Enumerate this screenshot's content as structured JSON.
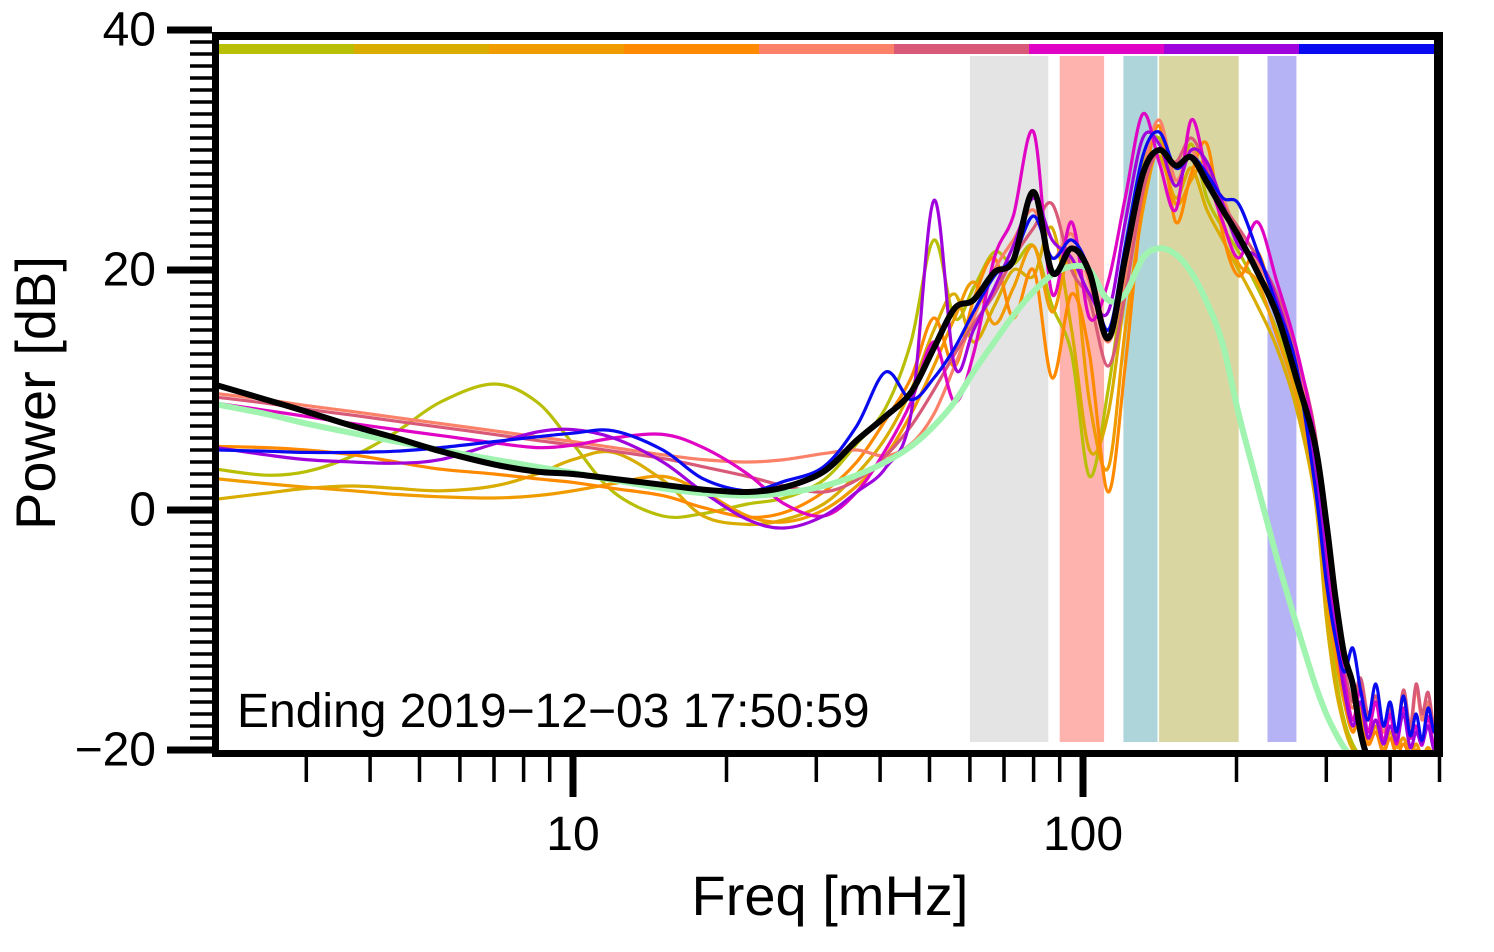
{
  "figure": {
    "background": "#ffffff"
  },
  "axes": {
    "x": {
      "label": "Freq [mHz]",
      "scale": "log",
      "min_mhz": 2,
      "max_mhz": 500,
      "major_ticks": [
        10,
        100
      ],
      "major_tick_labels": [
        "10",
        "100"
      ],
      "minor_ticks": [
        3,
        4,
        5,
        6,
        7,
        8,
        9,
        20,
        30,
        40,
        50,
        60,
        70,
        80,
        90,
        200,
        300,
        400,
        500
      ]
    },
    "y": {
      "label": "Power [dB]",
      "scale": "linear",
      "min_db": -20,
      "max_db": 40,
      "major_ticks": [
        40,
        20,
        0,
        -20
      ],
      "major_tick_labels": [
        "40",
        "20",
        "0",
        "−20"
      ],
      "minor_tick_step_db": 1
    }
  },
  "annotation": {
    "text": "Ending 2019−12−03 17:50:59"
  },
  "chart_data": {
    "type": "line",
    "title": "",
    "xlabel": "Freq [mHz]",
    "ylabel": "Power [dB]",
    "x_scale": "log",
    "xlim_mhz": [
      2,
      500
    ],
    "ylim_db": [
      -20,
      40
    ],
    "grid": false,
    "legend": "none",
    "time_colorbar_segments": [
      {
        "name": "oldest",
        "color": "#b8bf06"
      },
      {
        "name": "t2",
        "color": "#d9ac00"
      },
      {
        "name": "t3",
        "color": "#f09c00"
      },
      {
        "name": "t4",
        "color": "#ff8a00"
      },
      {
        "name": "t5",
        "color": "#fb8168"
      },
      {
        "name": "t6",
        "color": "#d85a78"
      },
      {
        "name": "t7",
        "color": "#e004c4"
      },
      {
        "name": "t8",
        "color": "#a004dc"
      },
      {
        "name": "newest",
        "color": "#0a0af0"
      }
    ],
    "highlight_bands": [
      {
        "name": "band-gray",
        "color": "#e4e4e4",
        "f_min_mhz": 60,
        "f_max_mhz": 85.5
      },
      {
        "name": "band-red",
        "color": "#ffb3ae",
        "f_min_mhz": 90,
        "f_max_mhz": 110
      },
      {
        "name": "band-teal",
        "color": "#aed6da",
        "f_min_mhz": 120,
        "f_max_mhz": 140
      },
      {
        "name": "band-khaki",
        "color": "#d9d6a2",
        "f_min_mhz": 141,
        "f_max_mhz": 202
      },
      {
        "name": "band-lavender",
        "color": "#b5b2f5",
        "f_min_mhz": 230,
        "f_max_mhz": 262
      }
    ],
    "x_mhz": [
      2,
      2.5,
      3,
      3.7,
      4.5,
      5.5,
      7,
      8.5,
      10,
      12,
      15,
      18,
      22,
      26,
      31,
      36,
      41,
      46,
      51,
      56,
      61,
      67,
      73,
      80,
      87,
      95,
      103,
      112,
      121,
      131,
      141,
      152,
      163,
      175,
      188,
      202,
      220,
      240,
      262,
      285,
      300,
      312,
      325,
      338,
      350,
      362,
      375,
      388,
      400,
      412,
      425,
      438,
      450,
      462,
      475,
      488,
      500
    ],
    "series": [
      {
        "name": "spectrum-olive",
        "color": "#b8bf06",
        "width": 3.2,
        "y_db": [
          3.4,
          2.9,
          3.2,
          4.5,
          6.5,
          9.0,
          10.5,
          9.0,
          5.5,
          1.5,
          -0.5,
          -0.3,
          0.5,
          1.0,
          2.5,
          5.5,
          8.5,
          14.0,
          22.5,
          16.0,
          18.5,
          21.5,
          20.5,
          22.0,
          17.0,
          13.0,
          2.8,
          10.0,
          20.0,
          29.0,
          31.0,
          27.0,
          30.5,
          26.0,
          23.5,
          21.5,
          18.5,
          15.0,
          10.0,
          3.0,
          -8.0,
          -13.5,
          -17.5,
          -19.5,
          -20.5,
          -20.8,
          -20.8,
          -20.8,
          -20.8,
          -20.8,
          -20.8,
          -20.8,
          -20.8,
          -20.8,
          -20.8,
          -20.8,
          -20.8
        ]
      },
      {
        "name": "spectrum-gold",
        "color": "#d9ac00",
        "width": 3.2,
        "y_db": [
          0.9,
          1.4,
          1.8,
          2.0,
          1.8,
          1.6,
          2.0,
          3.0,
          4.2,
          4.8,
          2.5,
          -0.5,
          -1.2,
          -0.8,
          0.5,
          3.0,
          6.0,
          10.0,
          15.0,
          18.0,
          14.0,
          17.0,
          20.0,
          19.5,
          23.5,
          15.0,
          5.0,
          8.0,
          18.0,
          27.0,
          29.5,
          26.0,
          28.5,
          25.0,
          22.5,
          20.0,
          17.0,
          13.5,
          8.5,
          1.0,
          -9.0,
          -14.5,
          -18.0,
          -20.0,
          -20.7,
          -20.8,
          -20.8,
          -20.8,
          -20.8,
          -20.8,
          -20.8,
          -20.8,
          -20.8,
          -20.8,
          -20.8,
          -20.8,
          -20.8
        ]
      },
      {
        "name": "spectrum-amber",
        "color": "#f09c00",
        "width": 3.2,
        "y_db": [
          2.6,
          2.2,
          1.9,
          1.6,
          1.3,
          1.1,
          1.0,
          1.2,
          1.6,
          2.2,
          2.8,
          1.5,
          -0.5,
          -1.0,
          0.0,
          2.0,
          4.5,
          8.0,
          12.0,
          16.0,
          19.0,
          15.5,
          18.5,
          22.0,
          16.5,
          21.0,
          9.0,
          3.5,
          15.0,
          25.0,
          30.0,
          25.5,
          27.5,
          29.0,
          24.0,
          20.5,
          19.0,
          14.5,
          9.5,
          2.0,
          -7.0,
          -12.0,
          -16.0,
          -18.5,
          -17.0,
          -19.5,
          -18.0,
          -20.0,
          -18.5,
          -19.8,
          -19.0,
          -20.3,
          -19.5,
          -20.5,
          -19.8,
          -20.6,
          -20.0
        ]
      },
      {
        "name": "spectrum-orange",
        "color": "#ff8a00",
        "width": 3.2,
        "y_db": [
          5.3,
          5.2,
          5.0,
          4.6,
          4.0,
          3.4,
          3.0,
          2.6,
          2.3,
          1.8,
          1.2,
          0.2,
          -0.6,
          -0.2,
          1.5,
          4.0,
          7.5,
          11.0,
          16.0,
          12.0,
          17.5,
          21.0,
          16.0,
          20.0,
          11.0,
          18.0,
          13.0,
          1.5,
          12.0,
          26.0,
          32.0,
          24.0,
          28.0,
          30.5,
          23.0,
          19.5,
          21.5,
          16.0,
          11.0,
          3.5,
          -6.0,
          -11.0,
          -15.5,
          -18.5,
          -16.5,
          -19.5,
          -18.5,
          -20.2,
          -19.0,
          -20.4,
          -19.5,
          -20.5,
          -20.0,
          -20.6,
          -20.2,
          -20.7,
          -20.3
        ]
      },
      {
        "name": "spectrum-salmon",
        "color": "#fb8168",
        "width": 3.2,
        "y_db": [
          9.7,
          9.2,
          8.7,
          8.2,
          7.7,
          7.2,
          6.6,
          6.1,
          5.7,
          5.2,
          4.6,
          4.2,
          4.0,
          4.2,
          4.7,
          5.0,
          4.5,
          5.5,
          8.0,
          12.0,
          16.0,
          20.0,
          22.5,
          25.0,
          21.0,
          23.0,
          19.0,
          14.0,
          19.5,
          28.0,
          32.5,
          27.5,
          30.0,
          27.0,
          26.0,
          22.5,
          20.5,
          17.5,
          12.5,
          5.0,
          -4.5,
          -9.5,
          -14.0,
          -16.5,
          -14.5,
          -17.5,
          -16.0,
          -18.5,
          -17.0,
          -19.0,
          -15.5,
          -18.5,
          -14.8,
          -17.5,
          -16.0,
          -18.5,
          -17.8
        ]
      },
      {
        "name": "spectrum-rose",
        "color": "#d85a78",
        "width": 3.2,
        "y_db": [
          9.4,
          8.9,
          8.4,
          7.9,
          7.4,
          6.9,
          6.3,
          5.8,
          5.4,
          4.9,
          4.3,
          3.6,
          2.8,
          2.0,
          1.5,
          2.5,
          4.5,
          7.0,
          10.0,
          13.0,
          15.5,
          18.0,
          21.0,
          23.5,
          25.5,
          20.0,
          17.5,
          12.0,
          18.0,
          26.5,
          30.0,
          29.0,
          31.0,
          28.5,
          25.5,
          23.5,
          21.0,
          18.0,
          13.0,
          6.5,
          -3.5,
          -8.5,
          -13.0,
          -16.0,
          -14.0,
          -17.0,
          -15.5,
          -18.0,
          -16.5,
          -18.8,
          -15.0,
          -18.0,
          -14.5,
          -17.0,
          -15.2,
          -18.2,
          -17.5
        ]
      },
      {
        "name": "spectrum-magenta",
        "color": "#e004c4",
        "width": 3.2,
        "y_db": [
          8.9,
          8.3,
          7.8,
          7.2,
          6.7,
          6.2,
          5.6,
          5.2,
          5.4,
          6.0,
          6.3,
          5.2,
          3.0,
          0.5,
          -0.5,
          1.5,
          5.0,
          9.0,
          14.0,
          9.0,
          13.0,
          21.0,
          24.5,
          31.5,
          18.0,
          24.0,
          16.0,
          19.0,
          26.0,
          33.0,
          29.0,
          25.0,
          32.5,
          28.0,
          24.0,
          21.0,
          24.0,
          19.0,
          13.5,
          6.0,
          -3.0,
          -9.0,
          -14.0,
          -17.5,
          -15.0,
          -18.5,
          -16.0,
          -19.3,
          -17.0,
          -19.5,
          -16.5,
          -19.0,
          -18.0,
          -19.6,
          -17.2,
          -19.8,
          -18.5
        ]
      },
      {
        "name": "spectrum-purple",
        "color": "#a004dc",
        "width": 3.2,
        "y_db": [
          5.2,
          4.6,
          4.2,
          4.0,
          3.9,
          4.2,
          5.5,
          6.5,
          6.7,
          6.0,
          4.0,
          1.5,
          -0.8,
          -1.5,
          -0.5,
          1.5,
          3.5,
          8.0,
          25.8,
          12.0,
          15.0,
          18.5,
          22.0,
          26.0,
          22.5,
          21.0,
          18.0,
          16.5,
          24.0,
          31.0,
          30.5,
          27.0,
          30.0,
          29.0,
          25.5,
          22.0,
          21.0,
          17.5,
          12.0,
          4.0,
          -5.0,
          -10.0,
          -15.0,
          -18.0,
          -16.0,
          -19.0,
          -17.5,
          -19.5,
          -18.0,
          -19.2,
          -17.0,
          -19.8,
          -18.5,
          -19.5,
          -18.0,
          -20.0,
          -19.0
        ]
      },
      {
        "name": "reference-smooth-green",
        "color": "#a0f4b0",
        "width": 6,
        "y_db": [
          8.8,
          8.0,
          7.2,
          6.4,
          5.7,
          5.0,
          4.2,
          3.6,
          3.1,
          2.5,
          1.8,
          1.4,
          1.2,
          1.4,
          2.0,
          2.9,
          4.0,
          5.3,
          7.0,
          9.0,
          11.5,
          14.0,
          16.2,
          18.2,
          19.6,
          20.3,
          20.0,
          17.5,
          18.0,
          21.0,
          21.8,
          21.3,
          19.8,
          17.3,
          13.8,
          8.0,
          2.0,
          -4.0,
          -9.5,
          -14.5,
          -17.0,
          -18.5,
          -19.8,
          -20.6,
          -20.8,
          -20.8,
          -20.8,
          -20.8,
          -20.8,
          -20.8,
          -20.8,
          -20.8,
          -20.8,
          -20.8,
          -20.8,
          -20.8,
          -20.8
        ]
      },
      {
        "name": "spectrum-blue",
        "color": "#0a0af0",
        "width": 3.2,
        "y_db": [
          5.0,
          4.9,
          4.8,
          4.8,
          4.9,
          5.2,
          5.7,
          6.1,
          6.4,
          6.6,
          5.0,
          2.6,
          1.6,
          2.4,
          3.6,
          7.0,
          11.5,
          9.2,
          11.0,
          13.5,
          16.5,
          19.5,
          21.0,
          24.5,
          21.0,
          22.5,
          20.0,
          15.0,
          22.0,
          29.5,
          31.5,
          28.5,
          29.5,
          28.0,
          26.0,
          25.5,
          21.5,
          17.0,
          12.0,
          2.0,
          -6.0,
          -10.5,
          -13.5,
          -11.5,
          -15.0,
          -17.5,
          -14.5,
          -18.0,
          -16.0,
          -18.5,
          -15.5,
          -18.8,
          -17.0,
          -19.2,
          -16.5,
          -18.5,
          -17.5
        ]
      },
      {
        "name": "mean-spectrum-black",
        "color": "#000000",
        "width": 6,
        "y_db": [
          10.4,
          9.2,
          8.2,
          7.0,
          6.0,
          4.9,
          3.8,
          3.2,
          3.0,
          2.6,
          2.1,
          1.7,
          1.5,
          1.9,
          3.2,
          5.8,
          7.8,
          9.8,
          13.5,
          16.8,
          17.5,
          19.8,
          20.8,
          26.5,
          19.8,
          21.8,
          19.8,
          14.3,
          21.0,
          28.0,
          30.0,
          28.7,
          29.4,
          27.3,
          25.0,
          22.8,
          19.8,
          16.3,
          11.0,
          5.5,
          -1.0,
          -7.0,
          -12.0,
          -14.5,
          -18.5,
          -20.6,
          -20.8,
          -20.8,
          -20.8,
          -20.8,
          -20.8,
          -20.8,
          -20.8,
          -20.8,
          -20.8,
          -20.8,
          -20.8
        ]
      }
    ]
  }
}
